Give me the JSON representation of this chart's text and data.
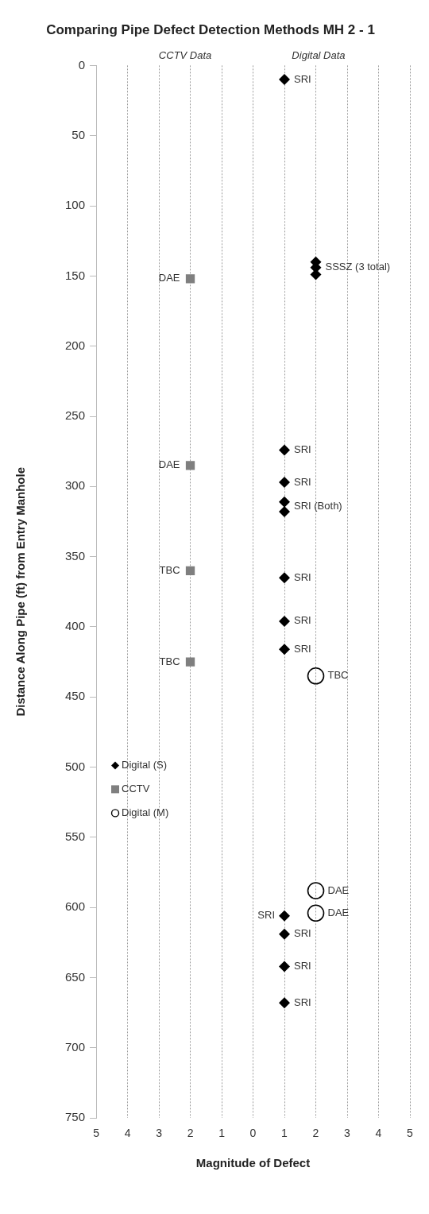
{
  "chart_data": {
    "type": "scatter",
    "title": "Comparing Pipe Defect Detection Methods MH 2 - 1",
    "xlabel": "Magnitude of Defect",
    "ylabel": "Distance Along Pipe (ft) from Entry Manhole",
    "annotations": [
      "CCTV Data",
      "Digital Data",
      {
        "text": "SRI",
        "x": 1,
        "y": 10
      },
      {
        "text": "SSSZ (3 total)",
        "x": 2,
        "y": 144
      },
      {
        "text": "SRI",
        "x": 1,
        "y": 274
      },
      {
        "text": "SRI",
        "x": 1,
        "y": 297
      },
      {
        "text": "SRI (Both)",
        "x": 1,
        "y": 314
      },
      {
        "text": "SRI",
        "x": 1,
        "y": 365
      },
      {
        "text": "SRI",
        "x": 1,
        "y": 396
      },
      {
        "text": "SRI",
        "x": 1,
        "y": 416
      },
      {
        "text": "SRI",
        "x": 1,
        "y": 606
      },
      {
        "text": "SRI",
        "x": 1,
        "y": 619
      },
      {
        "text": "SRI",
        "x": 1,
        "y": 642
      },
      {
        "text": "SRI",
        "x": 1,
        "y": 668
      },
      {
        "text": "DAE",
        "x": -2,
        "y": 152
      },
      {
        "text": "DAE",
        "x": -2,
        "y": 285
      },
      {
        "text": "TBC",
        "x": -2,
        "y": 360
      },
      {
        "text": "TBC",
        "x": -2,
        "y": 425
      },
      {
        "text": "TBC",
        "x": 2,
        "y": 435
      },
      {
        "text": "DAE",
        "x": 2,
        "y": 588
      },
      {
        "text": "DAE",
        "x": 2,
        "y": 604
      }
    ],
    "xlim": [
      -5,
      5
    ],
    "xticks": [
      {
        "value": -5,
        "label": "5"
      },
      {
        "value": -4,
        "label": "4"
      },
      {
        "value": -3,
        "label": "3"
      },
      {
        "value": -2,
        "label": "2"
      },
      {
        "value": -1,
        "label": "1"
      },
      0,
      1,
      2,
      3,
      4,
      5
    ],
    "ylim": [
      750,
      0
    ],
    "yticks": [
      0,
      50,
      100,
      150,
      200,
      250,
      300,
      350,
      400,
      450,
      500,
      550,
      600,
      650,
      700,
      750
    ],
    "grid": "x",
    "legend": "left",
    "series": [
      {
        "name": "Digital (S)",
        "color": "#000000",
        "marker": "diamond",
        "x": [
          1,
          2,
          2,
          2,
          1,
          1,
          1,
          1,
          1,
          1,
          1,
          1,
          1,
          1,
          1
        ],
        "values": [
          10,
          140,
          144,
          149,
          274,
          297,
          311,
          318,
          365,
          396,
          416,
          606,
          619,
          642,
          668
        ]
      },
      {
        "name": "CCTV",
        "color": "#7f7f7f",
        "marker": "square",
        "x": [
          -2,
          -2,
          -2,
          -2
        ],
        "values": [
          152,
          285,
          360,
          425
        ]
      },
      {
        "name": "Digital (M)",
        "color": "#000000",
        "marker": "circle",
        "x": [
          2,
          2,
          2
        ],
        "values": [
          435,
          588,
          604
        ]
      }
    ]
  }
}
